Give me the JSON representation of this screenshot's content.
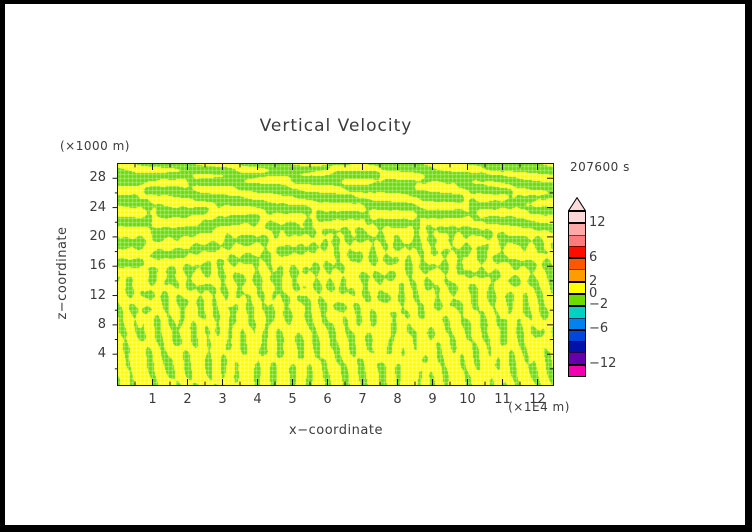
{
  "window": {
    "frame_color": "#000000",
    "canvas_color": "#ffffff"
  },
  "chart_data": {
    "type": "filled_contour",
    "title": "Vertical Velocity",
    "time_label": "207600 s",
    "x": {
      "label": "x−coordinate",
      "unit": "(×1E4 m)",
      "lim": [
        0,
        12.47
      ],
      "major_ticks": [
        1,
        2,
        3,
        4,
        5,
        6,
        7,
        8,
        9,
        10,
        11,
        12
      ],
      "minor_ticks": [
        0.5,
        1.5,
        2.5,
        3.5,
        4.5,
        5.5,
        6.5,
        7.5,
        8.5,
        9.5,
        10.5,
        11.5
      ]
    },
    "z": {
      "label": "z−coordinate",
      "unit": "(×1000 m)",
      "lim": [
        0,
        30.1
      ],
      "major_ticks": [
        4,
        8,
        12,
        16,
        20,
        24,
        28
      ],
      "minor_ticks": [
        2,
        6,
        10,
        14,
        18,
        22,
        26
      ]
    },
    "colorbar": {
      "vmin": -14,
      "vmax": 14,
      "arrow_color": "#FFDCDC",
      "labeled_levels": [
        12,
        6,
        2,
        0,
        -2,
        -6,
        -12
      ],
      "bands": [
        {
          "range": [
            12,
            14
          ],
          "color": "#FFD7D7"
        },
        {
          "range": [
            10,
            12
          ],
          "color": "#FFA9A9"
        },
        {
          "range": [
            8,
            10
          ],
          "color": "#FF7B7B"
        },
        {
          "range": [
            6,
            8
          ],
          "color": "#FF0C00"
        },
        {
          "range": [
            4,
            6
          ],
          "color": "#FF5700"
        },
        {
          "range": [
            2,
            4
          ],
          "color": "#FF9D00"
        },
        {
          "range": [
            0,
            2
          ],
          "color": "#FFFF00"
        },
        {
          "range": [
            -2,
            0
          ],
          "color": "#6EDB00"
        },
        {
          "range": [
            -4,
            -2
          ],
          "color": "#00D2C0"
        },
        {
          "range": [
            -6,
            -4
          ],
          "color": "#0082F0"
        },
        {
          "range": [
            -8,
            -6
          ],
          "color": "#0046DC"
        },
        {
          "range": [
            -10,
            -8
          ],
          "color": "#0012AA"
        },
        {
          "range": [
            -12,
            -10
          ],
          "color": "#6400AA"
        },
        {
          "range": [
            -14,
            -12
          ],
          "color": "#F000AF"
        }
      ]
    },
    "field": {
      "visible_bands": [
        {
          "range": [
            0,
            2
          ],
          "color": "#FFFF00"
        },
        {
          "range": [
            -2,
            0
          ],
          "color": "#6EDB00"
        }
      ],
      "description": "Vertical velocity field oscillating between about −2 and +2; horizontally elongated yellow/green cells aloft, narrow vertical green striations near the bottom, fine white cell mesh over the fill"
    },
    "texture": {
      "seed": 11,
      "yellow": "#FFFF00",
      "green": "#6EDB00",
      "mesh_color": "#FFFFFF",
      "mesh_alpha": 0.34,
      "mesh_step": 4
    }
  }
}
